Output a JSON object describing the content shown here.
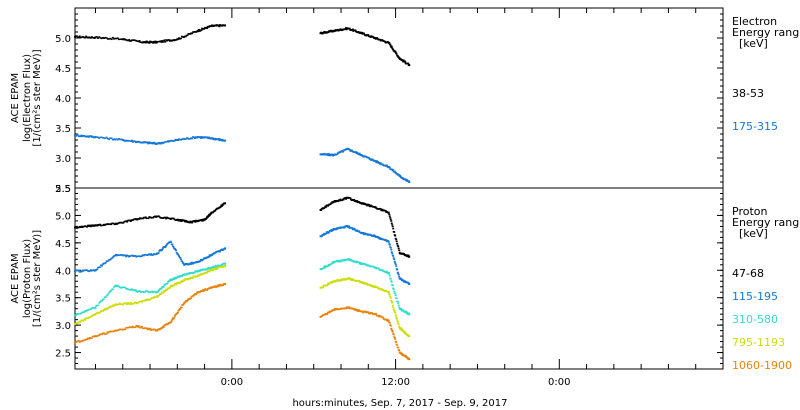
{
  "figure": {
    "x_axis_label": "hours:minutes, Sep.  7, 2017 - Sep.  9, 2017",
    "x_ticks": [
      "0:00",
      "12:00",
      "0:00"
    ]
  },
  "chart_data": [
    {
      "type": "scatter",
      "panel": "electron",
      "ylabel_lines": [
        "ACE EPAM",
        "log(Electron Flux)",
        "[1/(cm²s ster MeV)]"
      ],
      "ylim": [
        2.5,
        5.5
      ],
      "y_ticks": [
        "2.5",
        "3.0",
        "3.5",
        "4.0",
        "4.5",
        "5.0"
      ],
      "legend_title_lines": [
        "Electron",
        "Energy range",
        "[keV]"
      ],
      "x_unit": "hours from 0:00 Sep 7",
      "xlim": [
        -11.5,
        36
      ],
      "series": [
        {
          "name": "38-53",
          "color": "#000000",
          "segments": [
            {
              "x": [
                -11.5,
                -10,
                -8,
                -6.5,
                -5.5,
                -4,
                -2.5,
                -1.5,
                -0.5
              ],
              "y": [
                5.02,
                5.01,
                4.98,
                4.93,
                4.93,
                4.98,
                5.12,
                5.2,
                5.21
              ]
            },
            {
              "x": [
                6.5,
                7.5,
                8.5,
                9.5,
                10.5,
                11.5,
                12.3,
                13.0
              ],
              "y": [
                5.08,
                5.12,
                5.16,
                5.08,
                5.0,
                4.92,
                4.66,
                4.55
              ]
            }
          ]
        },
        {
          "name": "175-315",
          "color": "#1577d8",
          "segments": [
            {
              "x": [
                -11.5,
                -10,
                -8,
                -6.5,
                -5.5,
                -4,
                -2.5,
                -1.5,
                -0.5
              ],
              "y": [
                3.38,
                3.35,
                3.3,
                3.26,
                3.24,
                3.3,
                3.35,
                3.33,
                3.29
              ]
            },
            {
              "x": [
                6.5,
                7.5,
                8.5,
                9.5,
                10.5,
                11.5,
                12.3,
                13.0
              ],
              "y": [
                3.06,
                3.05,
                3.15,
                3.05,
                2.95,
                2.85,
                2.7,
                2.6
              ]
            }
          ]
        }
      ]
    },
    {
      "type": "scatter",
      "panel": "proton",
      "ylabel_lines": [
        "ACE EPAM",
        "log(Proton Flux)",
        "[1/(cm²s ster MeV)]"
      ],
      "ylim": [
        2.2,
        5.5
      ],
      "y_ticks": [
        "2.5",
        "3.0",
        "3.5",
        "4.0",
        "4.5",
        "5.0",
        "5.5"
      ],
      "legend_title_lines": [
        "Proton",
        "Energy range",
        "[keV]"
      ],
      "x_unit": "hours from 0:00 Sep 7",
      "xlim": [
        -11.5,
        36
      ],
      "series": [
        {
          "name": "47-68",
          "color": "#000000",
          "segments": [
            {
              "x": [
                -11.5,
                -10,
                -8.5,
                -7,
                -5.5,
                -4,
                -3,
                -2,
                -1.5,
                -0.5
              ],
              "y": [
                4.78,
                4.82,
                4.85,
                4.93,
                4.98,
                4.92,
                4.88,
                4.92,
                5.05,
                5.22
              ]
            },
            {
              "x": [
                6.5,
                7.5,
                8.5,
                9.5,
                10.5,
                11.5,
                12.3,
                13.0
              ],
              "y": [
                5.1,
                5.25,
                5.32,
                5.22,
                5.15,
                5.05,
                4.32,
                4.25
              ]
            }
          ]
        },
        {
          "name": "115-195",
          "color": "#1577d8",
          "segments": [
            {
              "x": [
                -11.5,
                -10,
                -8.5,
                -7,
                -5.5,
                -4.5,
                -3.5,
                -2.5,
                -1.5,
                -0.5
              ],
              "y": [
                3.98,
                4.0,
                4.28,
                4.25,
                4.3,
                4.52,
                4.1,
                4.15,
                4.28,
                4.4
              ]
            },
            {
              "x": [
                6.5,
                7.5,
                8.5,
                9.5,
                10.5,
                11.5,
                12.3,
                13.0
              ],
              "y": [
                4.62,
                4.75,
                4.8,
                4.68,
                4.62,
                4.52,
                3.85,
                3.75
              ]
            }
          ]
        },
        {
          "name": "310-580",
          "color": "#33dccc",
          "segments": [
            {
              "x": [
                -11.5,
                -10,
                -8.5,
                -7,
                -5.5,
                -4.5,
                -3.5,
                -2.5,
                -1.5,
                -0.5
              ],
              "y": [
                3.18,
                3.32,
                3.72,
                3.62,
                3.6,
                3.82,
                3.92,
                3.98,
                4.05,
                4.12
              ]
            },
            {
              "x": [
                6.5,
                7.5,
                8.5,
                9.5,
                10.5,
                11.5,
                12.3,
                13.0
              ],
              "y": [
                4.02,
                4.15,
                4.2,
                4.12,
                4.05,
                3.95,
                3.3,
                3.2
              ]
            }
          ]
        },
        {
          "name": "795-1193",
          "color": "#ccdd0a",
          "segments": [
            {
              "x": [
                -11.5,
                -10,
                -8.5,
                -7,
                -5.5,
                -4.5,
                -3.5,
                -2.5,
                -1.5,
                -0.5
              ],
              "y": [
                3.02,
                3.2,
                3.38,
                3.4,
                3.52,
                3.7,
                3.82,
                3.9,
                4.0,
                4.08
              ]
            },
            {
              "x": [
                6.5,
                7.5,
                8.5,
                9.5,
                10.5,
                11.5,
                12.3,
                13.0
              ],
              "y": [
                3.68,
                3.8,
                3.85,
                3.78,
                3.7,
                3.6,
                2.95,
                2.8
              ]
            }
          ]
        },
        {
          "name": "1060-1900",
          "color": "#e8820c",
          "segments": [
            {
              "x": [
                -11.5,
                -10,
                -8.5,
                -7,
                -5.5,
                -4.5,
                -3.5,
                -2.5,
                -1.5,
                -0.5
              ],
              "y": [
                2.68,
                2.8,
                2.9,
                2.98,
                2.9,
                3.05,
                3.4,
                3.6,
                3.68,
                3.75
              ]
            },
            {
              "x": [
                6.5,
                7.5,
                8.5,
                9.5,
                10.5,
                11.5,
                12.3,
                13.0
              ],
              "y": [
                3.15,
                3.28,
                3.32,
                3.25,
                3.2,
                3.08,
                2.5,
                2.38
              ]
            }
          ]
        }
      ]
    }
  ]
}
